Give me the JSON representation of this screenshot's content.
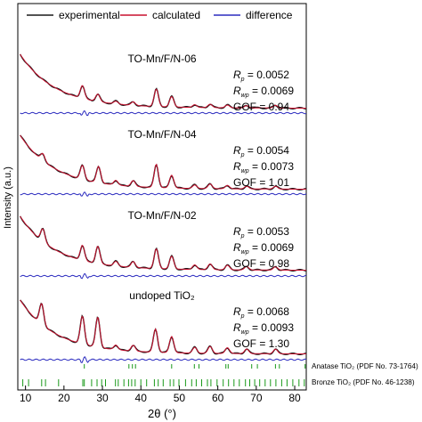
{
  "chart_data": {
    "type": "line",
    "xlabel": "2θ (°)",
    "ylabel": "Intensity (a.u.)",
    "xlim": [
      8,
      83
    ],
    "xticks": [
      10,
      20,
      30,
      40,
      50,
      60,
      70,
      80
    ],
    "grid": false,
    "legend": {
      "placement": "top",
      "entries": [
        {
          "name": "experimental",
          "color": "#1a1a1a"
        },
        {
          "name": "calculated",
          "color": "#c8102e"
        },
        {
          "name": "difference",
          "color": "#2b2bbf"
        }
      ]
    },
    "panels": [
      {
        "sample": "TO-Mn/F/N-06",
        "Rp": "0.0052",
        "Rwp": "0.0069",
        "GOF": "0.94",
        "peaks": [
          [
            24.8,
            0.55
          ],
          [
            28.8,
            0.32
          ],
          [
            33.5,
            0.12
          ],
          [
            38.0,
            0.15
          ],
          [
            44.0,
            0.75
          ],
          [
            48.0,
            0.45
          ],
          [
            54.0,
            0.12
          ],
          [
            58.0,
            0.15
          ],
          [
            62.5,
            0.12
          ],
          [
            67.5,
            0.1
          ],
          [
            75.0,
            0.12
          ]
        ]
      },
      {
        "sample": "TO-Mn/F/N-04",
        "Rp": "0.0054",
        "Rwp": "0.0073",
        "GOF": "1.01",
        "peaks": [
          [
            14.5,
            0.3
          ],
          [
            24.8,
            0.6
          ],
          [
            29.0,
            0.7
          ],
          [
            33.5,
            0.2
          ],
          [
            38.0,
            0.25
          ],
          [
            44.0,
            1.0
          ],
          [
            48.0,
            0.55
          ],
          [
            54.0,
            0.15
          ],
          [
            58.0,
            0.2
          ],
          [
            62.5,
            0.15
          ],
          [
            67.5,
            0.12
          ],
          [
            75.0,
            0.12
          ]
        ]
      },
      {
        "sample": "TO-Mn/F/N-02",
        "Rp": "0.0053",
        "Rwp": "0.0069",
        "GOF": "0.98",
        "peaks": [
          [
            14.5,
            0.55
          ],
          [
            24.8,
            0.65
          ],
          [
            28.8,
            0.75
          ],
          [
            33.5,
            0.2
          ],
          [
            38.0,
            0.25
          ],
          [
            44.0,
            0.85
          ],
          [
            48.0,
            0.55
          ],
          [
            54.0,
            0.2
          ],
          [
            58.0,
            0.25
          ],
          [
            62.5,
            0.2
          ],
          [
            67.5,
            0.15
          ],
          [
            75.0,
            0.15
          ]
        ]
      },
      {
        "sample": "undoped TiO₂",
        "Rp": "0.0068",
        "Rwp": "0.0093",
        "GOF": "1.30",
        "peaks": [
          [
            14.2,
            0.9
          ],
          [
            24.8,
            1.2
          ],
          [
            28.8,
            1.3
          ],
          [
            33.5,
            0.2
          ],
          [
            38.0,
            0.25
          ],
          [
            43.8,
            1.0
          ],
          [
            48.0,
            0.7
          ],
          [
            54.0,
            0.25
          ],
          [
            58.0,
            0.3
          ],
          [
            62.5,
            0.25
          ],
          [
            67.5,
            0.2
          ],
          [
            75.0,
            0.2
          ]
        ]
      }
    ],
    "references": [
      {
        "name": "Anatase TiO₂ (PDF No. 73-1764)",
        "color": "#1a9a1a",
        "positions": [
          25.3,
          36.9,
          37.8,
          38.6,
          48.0,
          53.9,
          55.1,
          62.1,
          62.7,
          68.8,
          70.3,
          75.0,
          76.0,
          82.7
        ]
      },
      {
        "name": "Bronze TiO₂ (PDF No. 46-1238)",
        "color": "#1a9a1a",
        "positions": [
          9.3,
          10.8,
          14.2,
          15.2,
          18.6,
          24.9,
          25.3,
          27.2,
          28.6,
          29.8,
          30.8,
          33.4,
          34.1,
          35.6,
          36.8,
          37.6,
          38.5,
          40.0,
          41.5,
          43.5,
          44.5,
          45.8,
          47.6,
          48.5,
          49.9,
          51.6,
          53.2,
          54.4,
          55.8,
          57.3,
          58.2,
          59.8,
          61.4,
          62.8,
          64.2,
          65.6,
          67.2,
          68.3,
          69.6,
          70.9,
          72.3,
          73.7,
          75.1,
          76.6,
          78.0,
          79.5,
          81.1,
          82.5
        ]
      }
    ]
  }
}
